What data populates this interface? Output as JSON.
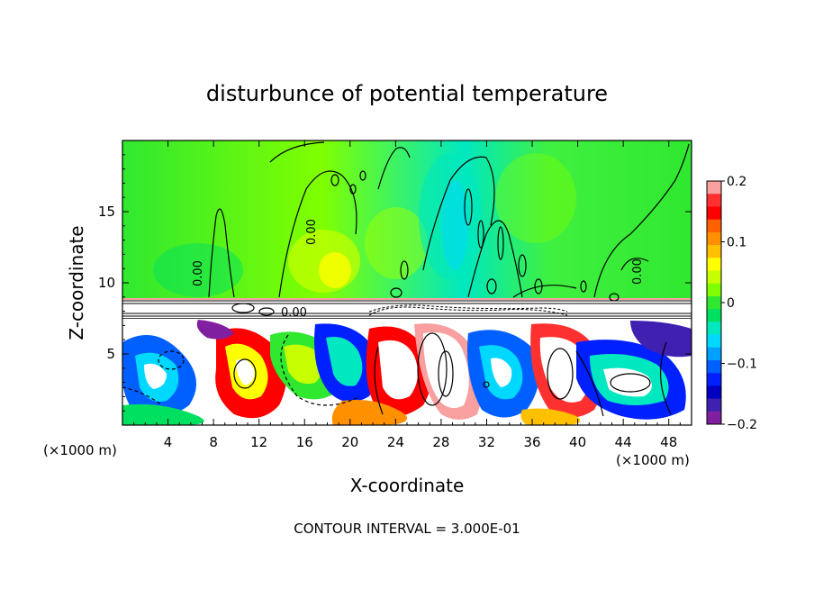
{
  "chart_data": {
    "type": "heatmap",
    "title": "disturbunce of potential temperature",
    "xlabel": "X-coordinate",
    "ylabel": "Z-coordinate",
    "x_unit": "(×1000 m)",
    "y_unit": "(×1000 m)",
    "xlim": [
      0,
      50
    ],
    "ylim": [
      0,
      20
    ],
    "x_ticks": [
      4,
      8,
      12,
      16,
      20,
      24,
      28,
      32,
      36,
      40,
      44,
      48
    ],
    "y_ticks": [
      5,
      10,
      15
    ],
    "colorbar": {
      "range": [
        -0.2,
        0.2
      ],
      "tick_values": [
        0.2,
        0.1,
        0,
        -0.1,
        -0.2
      ],
      "tick_labels": [
        "0.2",
        "0.1",
        "0",
        "−0.1",
        "−0.2"
      ],
      "colors": [
        "#f8a0a0",
        "#ff3030",
        "#ff0000",
        "#ff6000",
        "#ff9000",
        "#ffc000",
        "#ffff00",
        "#c8ff00",
        "#80ff00",
        "#30e830",
        "#00e060",
        "#00e8c0",
        "#00d8ff",
        "#00a0ff",
        "#0060ff",
        "#0020ff",
        "#0000c0",
        "#4020b0",
        "#8020a0"
      ]
    },
    "contour_labels": [
      "0.00",
      "0.00",
      "0.00",
      "0.00"
    ],
    "footer": "CONTOUR INTERVAL = 3.000E-01"
  }
}
